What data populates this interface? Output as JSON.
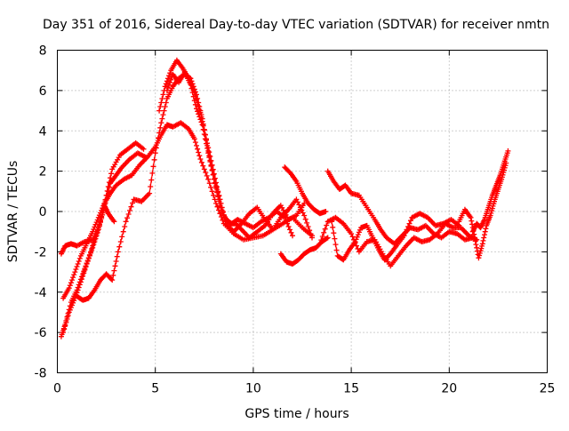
{
  "chart_data": {
    "type": "scatter",
    "title": "Day 351 of 2016, Sidereal Day-to-day VTEC variation (SDTVAR) for receiver nmtn",
    "xlabel": "GPS time / hours",
    "ylabel": "SDTVAR / TECUs",
    "xlim": [
      0,
      25
    ],
    "ylim": [
      -8,
      8
    ],
    "xticks": [
      0,
      5,
      10,
      15,
      20,
      25
    ],
    "xtick_labels": [
      "0",
      "5",
      "10",
      "15",
      "20",
      "25"
    ],
    "yticks": [
      -8,
      -6,
      -4,
      -2,
      0,
      2,
      4,
      6,
      8
    ],
    "ytick_labels": [
      "-8",
      "-6",
      "-4",
      "-2",
      "0",
      "2",
      "4",
      "6",
      "8"
    ],
    "grid": true,
    "marker": "+",
    "color": "#ff0000",
    "series": [
      {
        "name": "trace-1",
        "x": [
          0.2,
          0.4,
          0.7,
          1.0,
          1.4,
          1.8,
          2.1,
          2.4,
          2.6,
          2.9
        ],
        "y": [
          -2.1,
          -1.7,
          -1.6,
          -1.7,
          -1.5,
          -1.4,
          -0.8,
          0.3,
          -0.1,
          -0.5
        ]
      },
      {
        "name": "trace-2",
        "x": [
          0.2,
          0.4,
          0.7,
          1.0,
          1.3,
          1.6,
          1.9,
          2.2,
          2.5,
          2.8,
          3.2,
          3.6,
          4.0,
          4.4
        ],
        "y": [
          -6.2,
          -5.6,
          -4.5,
          -3.9,
          -3.1,
          -2.3,
          -1.4,
          -0.5,
          0.8,
          2.1,
          2.8,
          3.1,
          3.4,
          3.1
        ]
      },
      {
        "name": "trace-3",
        "x": [
          0.3,
          0.6,
          0.9,
          1.2,
          1.5,
          1.8,
          2.1,
          2.4,
          2.7,
          3.0,
          3.3,
          3.7,
          4.1,
          4.5
        ],
        "y": [
          -6.0,
          -5.0,
          -4.3,
          -3.5,
          -2.6,
          -1.8,
          -0.9,
          0.2,
          1.4,
          1.8,
          2.2,
          2.6,
          2.9,
          2.7
        ]
      },
      {
        "name": "trace-4",
        "x": [
          0.3,
          0.6,
          0.9,
          1.2,
          1.5,
          1.8,
          2.1,
          2.4,
          2.7,
          3.0,
          3.4,
          3.8,
          4.2,
          4.6,
          5.0,
          5.3,
          5.6,
          5.9,
          6.3,
          6.7,
          7.0,
          7.3,
          7.7,
          8.1,
          8.5,
          9.0,
          9.5,
          10.0,
          10.5,
          11.0,
          11.5,
          12.0,
          12.5,
          13.0
        ],
        "y": [
          -4.3,
          -3.8,
          -3.0,
          -2.2,
          -1.6,
          -1.0,
          -0.3,
          0.4,
          0.9,
          1.3,
          1.6,
          1.8,
          2.3,
          2.7,
          3.2,
          3.8,
          4.3,
          4.2,
          4.4,
          4.1,
          3.6,
          2.6,
          1.6,
          0.4,
          -0.6,
          -1.1,
          -1.4,
          -1.3,
          -1.2,
          -0.9,
          -0.6,
          -0.3,
          -0.8,
          -1.2
        ]
      },
      {
        "name": "trace-5",
        "x": [
          1.0,
          1.3,
          1.6,
          1.9,
          2.2,
          2.5,
          2.8,
          3.1,
          3.5,
          3.9,
          4.3,
          4.7,
          5.0,
          5.3,
          5.6,
          5.9,
          6.2,
          6.5,
          6.8,
          7.1,
          7.4,
          7.7,
          8.0,
          8.3,
          8.6,
          9.0,
          9.4,
          9.8,
          10.2,
          10.6,
          11.0,
          11.4,
          11.8,
          12.2,
          12.6,
          13.0
        ],
        "y": [
          -4.2,
          -4.4,
          -4.3,
          -3.9,
          -3.4,
          -3.1,
          -3.4,
          -2.0,
          -0.5,
          0.6,
          0.5,
          0.9,
          2.9,
          4.4,
          5.6,
          6.2,
          6.6,
          6.8,
          6.6,
          5.8,
          4.6,
          3.0,
          1.6,
          0.6,
          -0.6,
          -1.0,
          -0.6,
          -0.1,
          0.2,
          -0.4,
          -0.9,
          -0.3,
          0.1,
          0.6,
          -0.2,
          -1.3
        ]
      },
      {
        "name": "trace-6",
        "x": [
          5.2,
          5.5,
          5.8,
          6.1,
          6.4,
          6.7,
          7.0,
          7.3,
          7.6,
          7.9,
          8.2,
          8.5,
          8.8,
          9.1,
          9.4,
          9.8,
          10.2,
          10.6,
          11.0,
          11.4,
          11.8,
          12.2,
          12.6
        ],
        "y": [
          5.0,
          6.2,
          7.0,
          7.5,
          7.1,
          6.6,
          5.9,
          4.9,
          3.6,
          2.3,
          1.0,
          -0.2,
          -0.6,
          -0.6,
          -0.9,
          -1.3,
          -1.0,
          -0.7,
          -0.1,
          0.3,
          -0.4,
          -0.2,
          0.4
        ]
      },
      {
        "name": "trace-7",
        "x": [
          5.6,
          5.9,
          6.2,
          6.5,
          6.8,
          7.1,
          7.4,
          7.7,
          8.0,
          8.3,
          8.6,
          8.9,
          9.2,
          9.6,
          10.0,
          10.4,
          10.8,
          11.2,
          11.6,
          12.0
        ],
        "y": [
          6.0,
          6.8,
          6.4,
          6.9,
          6.3,
          5.1,
          4.3,
          2.9,
          1.6,
          0.3,
          -0.4,
          -0.6,
          -0.4,
          -0.6,
          -0.8,
          -0.5,
          -0.3,
          0.0,
          -0.3,
          -1.2
        ]
      },
      {
        "name": "trace-8",
        "x": [
          11.6,
          11.9,
          12.2,
          12.5,
          12.8,
          13.1,
          13.4,
          13.7
        ],
        "y": [
          2.2,
          1.9,
          1.5,
          0.9,
          0.4,
          0.1,
          -0.1,
          0.0
        ]
      },
      {
        "name": "trace-9",
        "x": [
          11.4,
          11.7,
          12.0,
          12.3,
          12.6,
          12.9,
          13.2,
          13.5,
          13.8
        ],
        "y": [
          -2.1,
          -2.5,
          -2.6,
          -2.4,
          -2.1,
          -1.9,
          -1.8,
          -1.5,
          -1.3
        ]
      },
      {
        "name": "trace-10",
        "x": [
          13.8,
          14.1,
          14.4,
          14.7,
          15.0,
          15.4,
          15.8,
          16.2,
          16.5,
          16.8,
          17.2,
          17.6,
          18.0,
          18.4,
          18.8,
          19.2,
          19.6,
          20.0,
          20.4,
          20.8,
          21.2
        ],
        "y": [
          2.0,
          1.5,
          1.1,
          1.3,
          0.9,
          0.8,
          0.2,
          -0.4,
          -0.9,
          -1.3,
          -1.6,
          -1.2,
          -0.8,
          -0.9,
          -0.7,
          -1.1,
          -1.3,
          -1.0,
          -1.1,
          -1.4,
          -1.3
        ]
      },
      {
        "name": "trace-11",
        "x": [
          13.4,
          13.8,
          14.2,
          14.6,
          15.0,
          15.4,
          15.8,
          16.2,
          16.6,
          17.0,
          17.4,
          17.8,
          18.2,
          18.6,
          19.0,
          19.4,
          19.8,
          20.2,
          20.6,
          21.0,
          21.4
        ],
        "y": [
          -1.6,
          -0.5,
          -0.3,
          -0.6,
          -1.1,
          -2.0,
          -1.5,
          -1.4,
          -2.1,
          -2.7,
          -2.2,
          -1.7,
          -1.3,
          -1.5,
          -1.4,
          -1.1,
          -0.6,
          -0.8,
          -0.8,
          -1.2,
          -1.4
        ]
      },
      {
        "name": "trace-12",
        "x": [
          14.0,
          14.3,
          14.6,
          14.9,
          15.2,
          15.5,
          15.8,
          16.1,
          16.4,
          16.7,
          17.0,
          17.3,
          17.7,
          18.1,
          18.5,
          18.9,
          19.3,
          19.7,
          20.1,
          20.5
        ],
        "y": [
          -0.5,
          -2.2,
          -2.4,
          -1.9,
          -1.5,
          -0.8,
          -0.7,
          -1.3,
          -1.9,
          -2.4,
          -2.1,
          -1.7,
          -1.2,
          -0.3,
          -0.1,
          -0.3,
          -0.7,
          -0.6,
          -0.4,
          -0.7
        ]
      },
      {
        "name": "trace-13",
        "x": [
          21.2,
          21.4,
          21.6,
          21.8,
          22.0,
          22.2,
          22.4,
          22.6,
          22.8,
          23.0
        ],
        "y": [
          -1.0,
          -0.6,
          -0.8,
          -0.4,
          0.2,
          0.8,
          1.3,
          1.8,
          2.4,
          3.0
        ]
      },
      {
        "name": "trace-14",
        "x": [
          20.5,
          20.8,
          21.1,
          21.3,
          21.5,
          21.7,
          21.9,
          22.1,
          22.3,
          22.5,
          22.7,
          22.9
        ],
        "y": [
          -0.5,
          0.1,
          -0.3,
          -1.3,
          -2.3,
          -1.6,
          -0.7,
          -0.2,
          0.5,
          1.1,
          1.7,
          2.4
        ]
      }
    ]
  }
}
